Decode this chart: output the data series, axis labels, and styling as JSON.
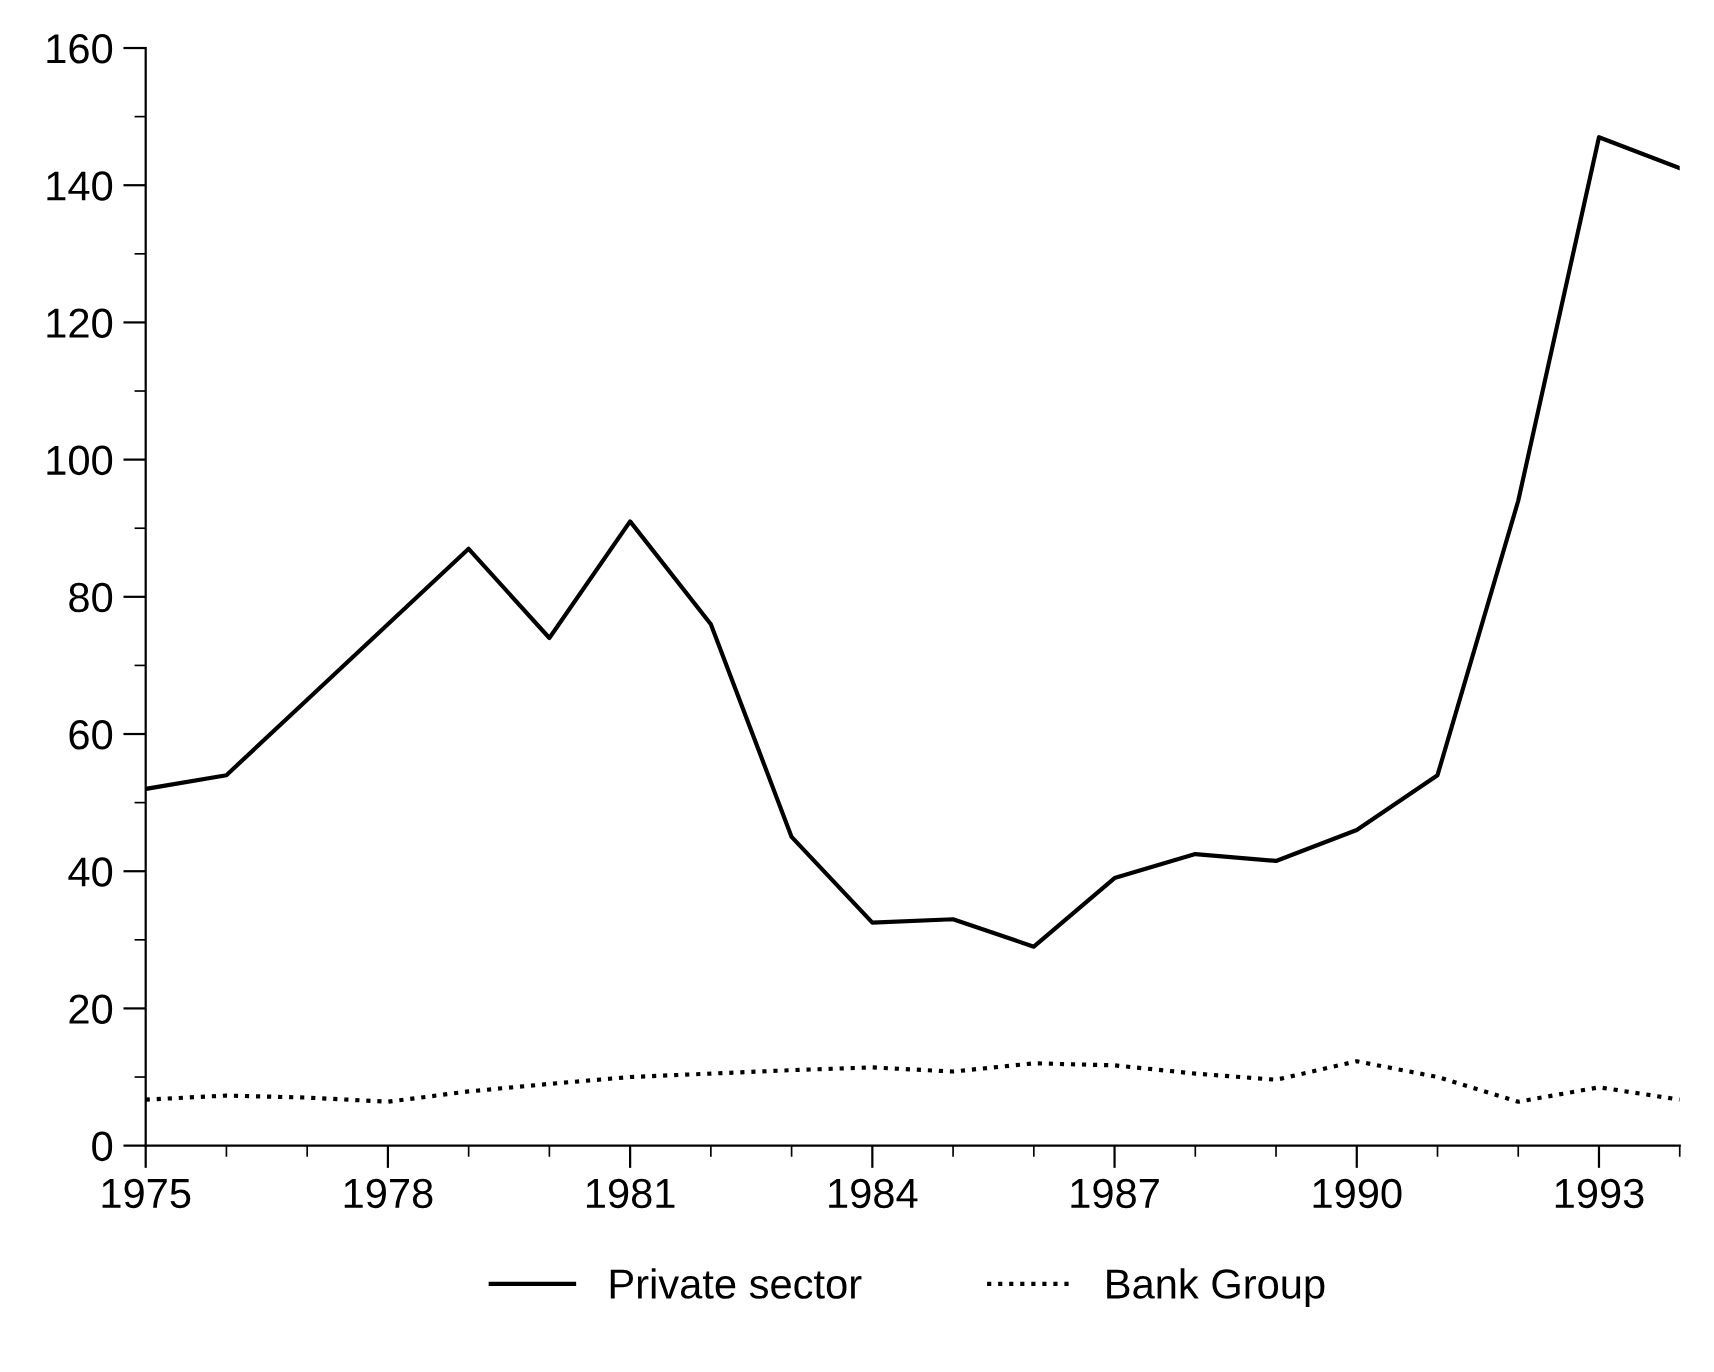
{
  "chart_data": {
    "type": "line",
    "x": [
      1975,
      1976,
      1977,
      1978,
      1979,
      1980,
      1981,
      1982,
      1983,
      1984,
      1985,
      1986,
      1987,
      1988,
      1989,
      1990,
      1991,
      1992,
      1993,
      1994
    ],
    "series": [
      {
        "name": "Private sector",
        "color": "#000000",
        "line_style": "solid",
        "values": [
          52,
          54,
          65,
          76,
          87,
          74,
          91,
          76,
          45,
          32.5,
          33,
          29,
          39,
          42.5,
          41.5,
          46,
          54,
          94,
          147,
          142.5
        ]
      },
      {
        "name": "Bank Group",
        "color": "#000000",
        "line_style": "dotted",
        "values": [
          6.7,
          7.3,
          7,
          6.4,
          7.9,
          9,
          10,
          10.5,
          11,
          11.4,
          10.8,
          12,
          11.7,
          10.5,
          9.6,
          12.3,
          10,
          6.4,
          8.5,
          6.7
        ]
      }
    ],
    "xlim": [
      1975,
      1994
    ],
    "xticks": [
      1975,
      1978,
      1981,
      1984,
      1987,
      1990,
      1993
    ],
    "ylim": [
      0,
      160
    ],
    "yticks": [
      0,
      20,
      40,
      60,
      80,
      100,
      120,
      140,
      160
    ],
    "grid": false,
    "legend": "bottom",
    "marker": "none"
  }
}
